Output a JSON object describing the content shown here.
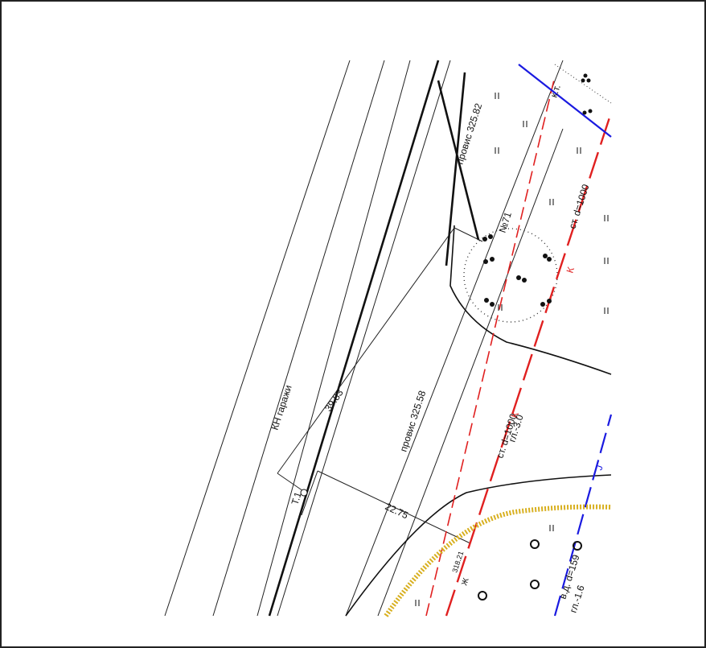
{
  "labels": [
    "провис 325.82",
    "к.т.",
    "№71",
    "ст. d=1000",
    "К",
    "КН гаражи",
    "39.83",
    "провис 325.58",
    "ст. d=1000",
    "К",
    "гл.-3.0",
    "Т.1",
    "22.75",
    "318.21",
    "Ж",
    "J",
    "в.д. d=159",
    "гл.-1.6"
  ]
}
